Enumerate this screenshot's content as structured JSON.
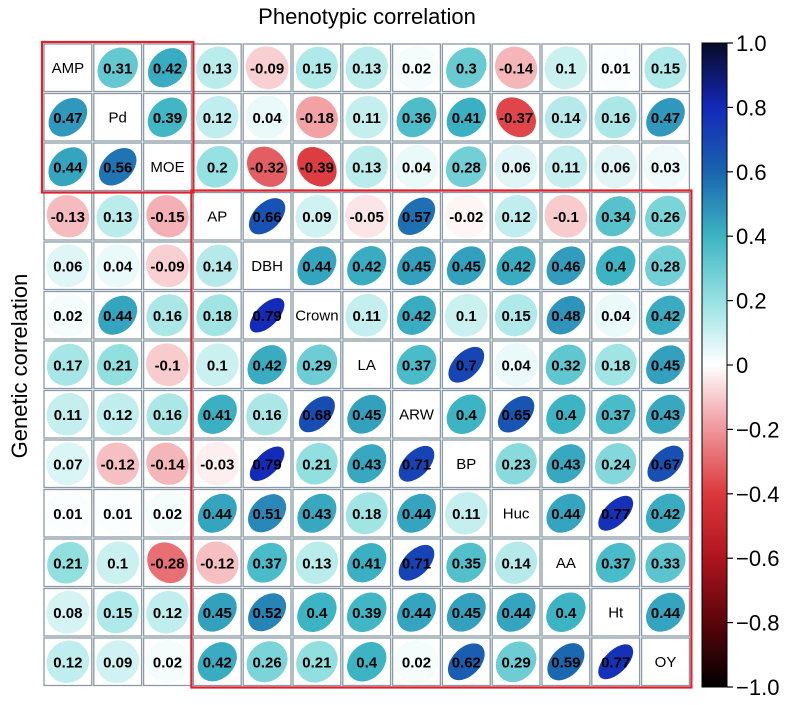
{
  "chart_data": {
    "type": "heatmap",
    "title": "Phenotypic correlation",
    "ylabel": "Genetic correlation",
    "upper_triangle": "Phenotypic correlation",
    "lower_triangle": "Genetic correlation",
    "variables": [
      "AMP",
      "Pd",
      "MOE",
      "AP",
      "DBH",
      "Crown",
      "LA",
      "ARW",
      "BP",
      "Huc",
      "AA",
      "Ht",
      "OY"
    ],
    "matrix": [
      [
        null,
        0.31,
        0.42,
        0.13,
        -0.09,
        0.15,
        0.13,
        0.02,
        0.3,
        -0.14,
        0.1,
        0.01,
        0.15
      ],
      [
        0.47,
        null,
        0.39,
        0.12,
        0.04,
        -0.18,
        0.11,
        0.36,
        0.41,
        -0.37,
        0.14,
        0.16,
        0.47
      ],
      [
        0.44,
        0.56,
        null,
        0.2,
        -0.32,
        -0.39,
        0.13,
        0.04,
        0.28,
        0.06,
        0.11,
        0.06,
        0.03
      ],
      [
        -0.13,
        0.13,
        -0.15,
        null,
        0.66,
        0.09,
        -0.05,
        0.57,
        -0.02,
        0.12,
        -0.1,
        0.34,
        0.26
      ],
      [
        0.06,
        0.04,
        -0.09,
        0.14,
        null,
        0.44,
        0.42,
        0.45,
        0.45,
        0.42,
        0.46,
        0.4,
        0.28
      ],
      [
        0.02,
        0.44,
        0.16,
        0.18,
        0.79,
        null,
        0.11,
        0.42,
        0.1,
        0.15,
        0.48,
        0.04,
        0.42
      ],
      [
        0.17,
        0.21,
        -0.1,
        0.1,
        0.42,
        0.29,
        null,
        0.37,
        0.7,
        0.04,
        0.32,
        0.18,
        0.45
      ],
      [
        0.11,
        0.12,
        0.16,
        0.41,
        0.16,
        0.68,
        0.45,
        null,
        0.4,
        0.65,
        0.4,
        0.37,
        0.43
      ],
      [
        0.07,
        -0.12,
        -0.14,
        -0.03,
        0.79,
        0.21,
        0.43,
        0.71,
        null,
        0.23,
        0.43,
        0.24,
        0.67
      ],
      [
        0.01,
        0.01,
        0.02,
        0.44,
        0.51,
        0.43,
        0.18,
        0.44,
        0.11,
        null,
        0.44,
        0.77,
        0.42
      ],
      [
        0.21,
        0.1,
        -0.28,
        -0.12,
        0.37,
        0.13,
        0.41,
        0.71,
        0.35,
        0.14,
        null,
        0.37,
        0.33
      ],
      [
        0.08,
        0.15,
        0.12,
        0.45,
        0.52,
        0.4,
        0.39,
        0.44,
        0.45,
        0.44,
        0.4,
        null,
        0.44
      ],
      [
        0.12,
        0.09,
        0.02,
        0.42,
        0.26,
        0.21,
        0.4,
        0.02,
        0.62,
        0.29,
        0.59,
        0.77,
        null
      ]
    ],
    "highlight_groups": [
      {
        "from": "AMP",
        "to": "MOE"
      },
      {
        "from": "AP",
        "to": "OY"
      }
    ],
    "colorbar": {
      "min": -1.0,
      "max": 1.0,
      "ticks": [
        "1.0",
        "0.8",
        "0.6",
        "0.4",
        "0.2",
        "0",
        "−0.2",
        "−0.4",
        "−0.6",
        "−0.8",
        "−1.0"
      ],
      "tick_values": [
        1.0,
        0.8,
        0.6,
        0.4,
        0.2,
        0,
        -0.2,
        -0.4,
        -0.6,
        -0.8,
        -1.0
      ],
      "colormap": "RdBu"
    },
    "colors": {
      "cell_border": "#8a9aa6",
      "highlight_border": "#e0202a"
    }
  }
}
